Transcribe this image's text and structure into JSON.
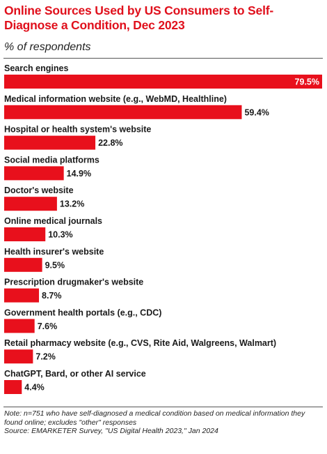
{
  "title": "Online Sources Used by US Consumers to Self-Diagnose a Condition, Dec 2023",
  "subtitle": "% of respondents",
  "note": "Note: n=751 who have self-diagnosed a medical condition based on medical information they found online; excludes \"other\" responses",
  "source": "Source: EMARKETER Survey, \"US Digital Health 2023,\" Jan 2024",
  "colors": {
    "accent": "#e0101c",
    "bar": "#e8101c",
    "text": "#1a1a1a"
  },
  "chart_data": {
    "type": "bar",
    "orientation": "horizontal",
    "categories": [
      "Search engines",
      "Medical information website (e.g., WebMD, Healthline)",
      "Hospital or health system's website",
      "Social media platforms",
      "Doctor's website",
      "Online medical journals",
      "Health insurer's website",
      "Prescription drugmaker's website",
      "Government health portals (e.g., CDC)",
      "Retail pharmacy website (e.g., CVS, Rite Aid, Walgreens, Walmart)",
      "ChatGPT, Bard, or other AI service"
    ],
    "values": [
      79.5,
      59.4,
      22.8,
      14.9,
      13.2,
      10.3,
      9.5,
      8.7,
      7.6,
      7.2,
      4.4
    ],
    "labels": [
      "79.5%",
      "59.4%",
      "22.8%",
      "14.9%",
      "13.2%",
      "10.3%",
      "9.5%",
      "8.7%",
      "7.6%",
      "7.2%",
      "4.4%"
    ],
    "xlim": [
      0,
      79.5
    ],
    "grid": false,
    "legend": "none"
  }
}
